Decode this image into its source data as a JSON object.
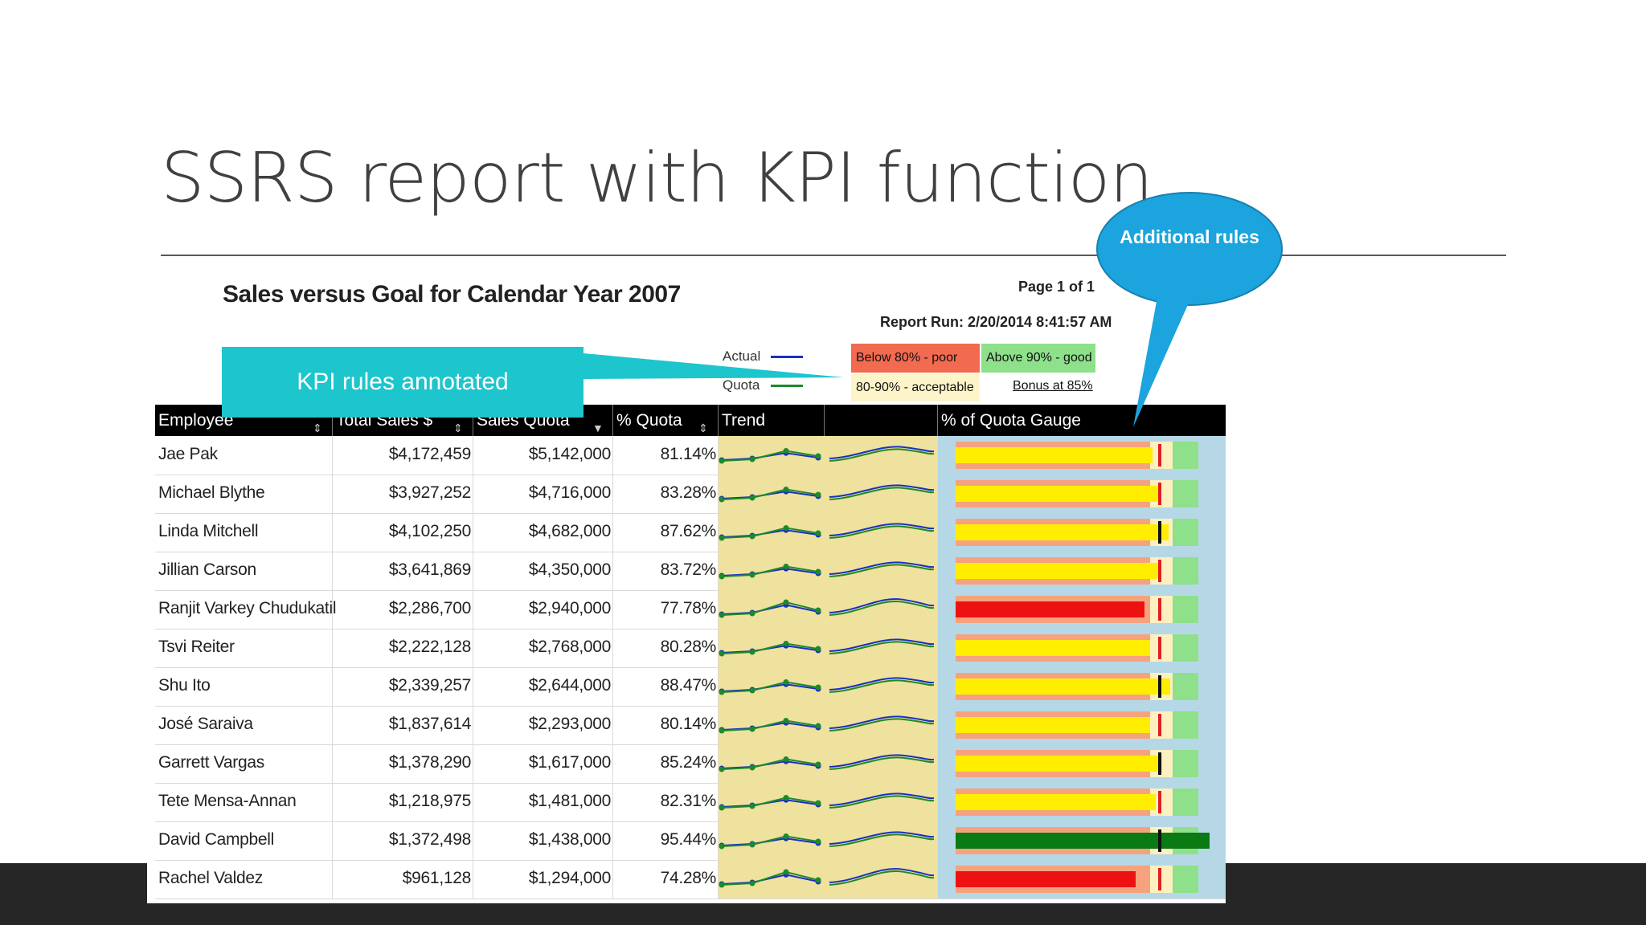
{
  "slide": {
    "title": "SSRS report with KPI function"
  },
  "report": {
    "title": "Sales versus Goal for Calendar Year 2007",
    "page_info": "Page 1 of 1",
    "report_run": "Report Run: 2/20/2014 8:41:57 AM",
    "legend": {
      "actual_label": "Actual",
      "quota_label": "Quota",
      "actual_color": "#1a2fc4",
      "quota_color": "#1c8a2a"
    },
    "kpi_rules": {
      "poor": "Below 80% - poor",
      "good": "Above 90% - good",
      "acceptable": "80-90% - acceptable",
      "bonus": "Bonus at 85%",
      "poor_color": "#f26a4f",
      "good_color": "#8ee08a",
      "acceptable_color": "#fdf5c9"
    },
    "columns": {
      "employee": "Employee",
      "total_sales": "Total Sales $",
      "sales_quota": "Sales Quota",
      "pct_quota": "% Quota",
      "trend": "Trend",
      "gauge": "% of Quota Gauge"
    },
    "rows": [
      {
        "employee": "Jae Pak",
        "total_sales": "$4,172,459",
        "sales_quota": "$5,142,000",
        "pct_quota": "81.14%",
        "pct": 81.14
      },
      {
        "employee": "Michael Blythe",
        "total_sales": "$3,927,252",
        "sales_quota": "$4,716,000",
        "pct_quota": "83.28%",
        "pct": 83.28
      },
      {
        "employee": "Linda Mitchell",
        "total_sales": "$4,102,250",
        "sales_quota": "$4,682,000",
        "pct_quota": "87.62%",
        "pct": 87.62
      },
      {
        "employee": "Jillian Carson",
        "total_sales": "$3,641,869",
        "sales_quota": "$4,350,000",
        "pct_quota": "83.72%",
        "pct": 83.72
      },
      {
        "employee": "Ranjit Varkey Chudukatil",
        "total_sales": "$2,286,700",
        "sales_quota": "$2,940,000",
        "pct_quota": "77.78%",
        "pct": 77.78
      },
      {
        "employee": "Tsvi Reiter",
        "total_sales": "$2,222,128",
        "sales_quota": "$2,768,000",
        "pct_quota": "80.28%",
        "pct": 80.28
      },
      {
        "employee": "Shu Ito",
        "total_sales": "$2,339,257",
        "sales_quota": "$2,644,000",
        "pct_quota": "88.47%",
        "pct": 88.47
      },
      {
        "employee": "José Saraiva",
        "total_sales": "$1,837,614",
        "sales_quota": "$2,293,000",
        "pct_quota": "80.14%",
        "pct": 80.14
      },
      {
        "employee": "Garrett Vargas",
        "total_sales": "$1,378,290",
        "sales_quota": "$1,617,000",
        "pct_quota": "85.24%",
        "pct": 85.24
      },
      {
        "employee": "Tete Mensa-Annan",
        "total_sales": "$1,218,975",
        "sales_quota": "$1,481,000",
        "pct_quota": "82.31%",
        "pct": 82.31
      },
      {
        "employee": "David Campbell",
        "total_sales": "$1,372,498",
        "sales_quota": "$1,438,000",
        "pct_quota": "95.44%",
        "pct": 95.44
      },
      {
        "employee": "Rachel Valdez",
        "total_sales": "$961,128",
        "sales_quota": "$1,294,000",
        "pct_quota": "74.28%",
        "pct": 74.28
      }
    ],
    "gauge_colors": {
      "poor_bar": "#ee1111",
      "acceptable_bar": "#ffee00",
      "good_bar": "#0a7a12",
      "track_red": "#f6a27e",
      "track_cream": "#fdf0c0",
      "track_green": "#8ee08a",
      "marker": "#111111",
      "bonus_marker": "#e02020"
    }
  },
  "callouts": {
    "kpi": "KPI rules annotated",
    "additional": "Additional rules",
    "teal_color": "#1dc5cd",
    "bubble_color": "#1ba4dd"
  },
  "icons": {
    "sort": "sort-icon"
  }
}
